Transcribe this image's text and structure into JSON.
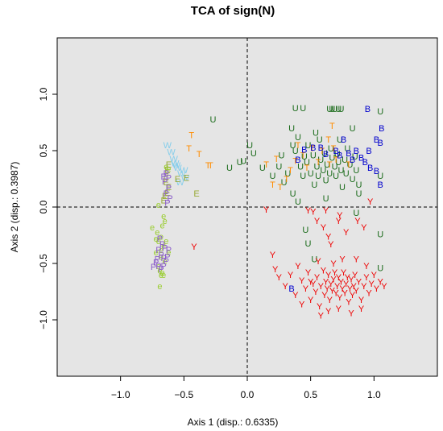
{
  "chart_data": {
    "type": "scatter",
    "title": "TCA of sign(N)",
    "xlabel": "Axis 1 (disp.: 0.6335)",
    "ylabel": "Axis 2 (disp.: 0.3987)",
    "xlim": [
      -1.5,
      1.5
    ],
    "ylim": [
      -1.5,
      1.5
    ],
    "x_ticks": [
      -1.0,
      -0.5,
      0.0,
      0.5,
      1.0
    ],
    "y_ticks": [
      -1.0,
      -0.5,
      0.0,
      0.5,
      1.0
    ],
    "x_tick_labels": [
      "−1.0",
      "−0.5",
      "0.0",
      "0.5",
      "1.0"
    ],
    "y_tick_labels": [
      "−1.0",
      "−0.5",
      "0.0",
      "0.5",
      "1.0"
    ],
    "reference_lines": {
      "x": 0,
      "y": 0,
      "style": "dashed"
    },
    "background": "#e5e5e5",
    "grid": false,
    "legend": "none",
    "series": [
      {
        "marker": "U",
        "color": "#1a6b1a",
        "points": [
          [
            -0.27,
            0.78
          ],
          [
            -0.14,
            0.35
          ],
          [
            -0.06,
            0.4
          ],
          [
            -0.03,
            0.41
          ],
          [
            0.02,
            0.55
          ],
          [
            0.05,
            0.48
          ],
          [
            0.12,
            0.35
          ],
          [
            0.2,
            0.28
          ],
          [
            0.25,
            0.36
          ],
          [
            0.27,
            0.46
          ],
          [
            0.29,
            0.22
          ],
          [
            0.32,
            0.3
          ],
          [
            0.36,
            0.55
          ],
          [
            0.38,
            0.5
          ],
          [
            0.4,
            0.62
          ],
          [
            0.42,
            0.36
          ],
          [
            0.44,
            0.28
          ],
          [
            0.45,
            0.45
          ],
          [
            0.47,
            0.4
          ],
          [
            0.48,
            0.55
          ],
          [
            0.5,
            0.3
          ],
          [
            0.52,
            0.46
          ],
          [
            0.53,
            0.2
          ],
          [
            0.55,
            0.36
          ],
          [
            0.56,
            0.28
          ],
          [
            0.57,
            0.6
          ],
          [
            0.58,
            0.42
          ],
          [
            0.6,
            0.33
          ],
          [
            0.61,
            0.48
          ],
          [
            0.62,
            0.24
          ],
          [
            0.63,
            0.38
          ],
          [
            0.65,
            0.3
          ],
          [
            0.66,
            0.52
          ],
          [
            0.67,
            0.44
          ],
          [
            0.69,
            0.36
          ],
          [
            0.7,
            0.28
          ],
          [
            0.71,
            0.47
          ],
          [
            0.72,
            0.4
          ],
          [
            0.73,
            0.6
          ],
          [
            0.74,
            0.33
          ],
          [
            0.75,
            0.18
          ],
          [
            0.77,
            0.42
          ],
          [
            0.78,
            0.3
          ],
          [
            0.79,
            0.52
          ],
          [
            0.81,
            0.38
          ],
          [
            0.83,
            0.25
          ],
          [
            0.85,
            0.45
          ],
          [
            0.86,
            0.33
          ],
          [
            0.88,
            0.2
          ],
          [
            0.38,
            0.88
          ],
          [
            0.44,
            0.88
          ],
          [
            0.65,
            0.87
          ],
          [
            0.67,
            0.87
          ],
          [
            0.69,
            0.87
          ],
          [
            0.72,
            0.87
          ],
          [
            0.74,
            0.87
          ],
          [
            0.35,
            0.7
          ],
          [
            0.54,
            0.66
          ],
          [
            0.83,
            0.7
          ],
          [
            0.88,
            0.12
          ],
          [
            0.86,
            -0.05
          ],
          [
            0.46,
            -0.2
          ],
          [
            0.48,
            -0.32
          ],
          [
            0.53,
            -0.46
          ],
          [
            1.05,
            0.85
          ],
          [
            1.05,
            0.28
          ],
          [
            1.05,
            -0.24
          ],
          [
            1.05,
            -0.54
          ],
          [
            0.62,
            0.08
          ],
          [
            0.4,
            0.05
          ],
          [
            0.36,
            0.12
          ]
        ]
      },
      {
        "marker": "T",
        "color": "#ff8c00",
        "points": [
          [
            -0.44,
            0.64
          ],
          [
            -0.46,
            0.52
          ],
          [
            -0.38,
            0.47
          ],
          [
            -0.29,
            0.37
          ],
          [
            -0.31,
            0.37
          ],
          [
            0.15,
            0.38
          ],
          [
            0.23,
            0.43
          ],
          [
            0.26,
            0.18
          ],
          [
            0.31,
            0.25
          ],
          [
            0.34,
            0.33
          ],
          [
            0.38,
            0.41
          ],
          [
            0.4,
            0.55
          ],
          [
            0.44,
            0.46
          ],
          [
            0.47,
            0.35
          ],
          [
            0.51,
            0.52
          ],
          [
            0.56,
            0.4
          ],
          [
            0.59,
            0.5
          ],
          [
            0.64,
            0.6
          ],
          [
            0.65,
            0.38
          ],
          [
            0.67,
            0.72
          ],
          [
            0.68,
            0.52
          ],
          [
            0.7,
            0.42
          ],
          [
            0.8,
            0.38
          ],
          [
            0.2,
            0.2
          ]
        ]
      },
      {
        "marker": "B",
        "color": "#0000cd",
        "points": [
          [
            0.95,
            0.87
          ],
          [
            1.06,
            0.7
          ],
          [
            1.02,
            0.6
          ],
          [
            1.05,
            0.57
          ],
          [
            0.96,
            0.5
          ],
          [
            0.9,
            0.44
          ],
          [
            0.93,
            0.4
          ],
          [
            0.97,
            0.35
          ],
          [
            1.02,
            0.32
          ],
          [
            1.05,
            0.2
          ],
          [
            0.76,
            0.6
          ],
          [
            0.8,
            0.48
          ],
          [
            0.86,
            0.5
          ],
          [
            0.83,
            0.42
          ],
          [
            0.73,
            0.46
          ],
          [
            0.7,
            0.5
          ],
          [
            0.62,
            0.47
          ],
          [
            0.58,
            0.53
          ],
          [
            0.52,
            0.53
          ],
          [
            0.45,
            0.51
          ],
          [
            0.4,
            0.42
          ],
          [
            0.35,
            -0.72
          ]
        ]
      },
      {
        "marker": "Y",
        "color": "#ee0000",
        "points": [
          [
            -0.42,
            -0.35
          ],
          [
            0.15,
            -0.02
          ],
          [
            0.48,
            -0.03
          ],
          [
            0.52,
            -0.04
          ],
          [
            0.62,
            -0.03
          ],
          [
            0.73,
            -0.07
          ],
          [
            0.97,
            0.05
          ],
          [
            0.55,
            -0.12
          ],
          [
            0.6,
            -0.18
          ],
          [
            0.64,
            -0.26
          ],
          [
            0.66,
            -0.33
          ],
          [
            0.72,
            -0.12
          ],
          [
            0.78,
            -0.22
          ],
          [
            0.87,
            -0.12
          ],
          [
            0.92,
            -0.18
          ],
          [
            0.2,
            -0.42
          ],
          [
            0.22,
            -0.55
          ],
          [
            0.25,
            -0.62
          ],
          [
            0.3,
            -0.7
          ],
          [
            0.34,
            -0.6
          ],
          [
            0.38,
            -0.78
          ],
          [
            0.4,
            -0.52
          ],
          [
            0.43,
            -0.65
          ],
          [
            0.46,
            -0.72
          ],
          [
            0.48,
            -0.58
          ],
          [
            0.5,
            -0.82
          ],
          [
            0.52,
            -0.68
          ],
          [
            0.54,
            -0.75
          ],
          [
            0.55,
            -0.62
          ],
          [
            0.57,
            -0.88
          ],
          [
            0.58,
            -0.7
          ],
          [
            0.6,
            -0.56
          ],
          [
            0.61,
            -0.78
          ],
          [
            0.62,
            -0.66
          ],
          [
            0.63,
            -0.72
          ],
          [
            0.64,
            -0.6
          ],
          [
            0.65,
            -0.82
          ],
          [
            0.66,
            -0.68
          ],
          [
            0.67,
            -0.74
          ],
          [
            0.68,
            -0.64
          ],
          [
            0.69,
            -0.58
          ],
          [
            0.7,
            -0.76
          ],
          [
            0.71,
            -0.7
          ],
          [
            0.72,
            -0.62
          ],
          [
            0.73,
            -0.8
          ],
          [
            0.74,
            -0.66
          ],
          [
            0.75,
            -0.72
          ],
          [
            0.76,
            -0.58
          ],
          [
            0.77,
            -0.76
          ],
          [
            0.78,
            -0.68
          ],
          [
            0.79,
            -0.62
          ],
          [
            0.8,
            -0.84
          ],
          [
            0.81,
            -0.72
          ],
          [
            0.82,
            -0.64
          ],
          [
            0.83,
            -0.78
          ],
          [
            0.84,
            -0.7
          ],
          [
            0.85,
            -0.6
          ],
          [
            0.86,
            -0.74
          ],
          [
            0.88,
            -0.66
          ],
          [
            0.9,
            -0.82
          ],
          [
            0.92,
            -0.7
          ],
          [
            0.94,
            -0.62
          ],
          [
            0.96,
            -0.76
          ],
          [
            0.98,
            -0.68
          ],
          [
            1.0,
            -0.6
          ],
          [
            1.02,
            -0.72
          ],
          [
            1.05,
            -0.66
          ],
          [
            1.08,
            -0.7
          ],
          [
            0.64,
            -0.92
          ],
          [
            0.72,
            -0.9
          ],
          [
            0.58,
            -0.96
          ],
          [
            0.82,
            -0.94
          ],
          [
            0.5,
            -0.66
          ],
          [
            0.56,
            -0.48
          ],
          [
            0.68,
            -0.5
          ],
          [
            0.75,
            -0.46
          ],
          [
            0.86,
            -0.46
          ],
          [
            0.94,
            -0.52
          ],
          [
            0.43,
            -0.86
          ],
          [
            0.9,
            -0.9
          ]
        ]
      },
      {
        "marker": "W",
        "color": "#87ceeb",
        "points": [
          [
            -0.63,
            0.55
          ],
          [
            -0.6,
            0.49
          ],
          [
            -0.58,
            0.43
          ],
          [
            -0.57,
            0.39
          ],
          [
            -0.56,
            0.37
          ],
          [
            -0.55,
            0.35
          ],
          [
            -0.52,
            0.3
          ],
          [
            -0.5,
            0.33
          ],
          [
            -0.49,
            0.26
          ],
          [
            -0.53,
            0.22
          ]
        ]
      },
      {
        "marker": "E",
        "color": "#9aab3a",
        "points": [
          [
            -0.62,
            0.38
          ],
          [
            -0.63,
            0.33
          ],
          [
            -0.64,
            0.27
          ],
          [
            -0.64,
            0.22
          ],
          [
            -0.62,
            0.18
          ],
          [
            -0.63,
            0.13
          ],
          [
            -0.65,
            0.1
          ],
          [
            -0.66,
            0.06
          ],
          [
            -0.55,
            0.25
          ],
          [
            -0.48,
            0.26
          ],
          [
            -0.4,
            0.12
          ]
        ]
      },
      {
        "marker": "e",
        "color": "#9acd32",
        "points": [
          [
            -0.75,
            -0.18
          ],
          [
            -0.71,
            -0.22
          ],
          [
            -0.67,
            -0.16
          ],
          [
            -0.65,
            -0.12
          ],
          [
            -0.66,
            -0.08
          ],
          [
            -0.68,
            -0.26
          ],
          [
            -0.7,
            -0.3
          ],
          [
            -0.66,
            -0.34
          ],
          [
            -0.64,
            -0.3
          ],
          [
            -0.72,
            -0.4
          ],
          [
            -0.68,
            -0.44
          ],
          [
            -0.65,
            -0.48
          ],
          [
            -0.7,
            -0.52
          ],
          [
            -0.66,
            -0.6
          ],
          [
            -0.69,
            -0.56
          ],
          [
            -0.68,
            -0.6
          ],
          [
            -0.67,
            -0.58
          ],
          [
            -0.68,
            -0.38
          ],
          [
            -0.72,
            -0.28
          ],
          [
            -0.62,
            -0.4
          ],
          [
            -0.62,
            0.34
          ],
          [
            -0.64,
            0.36
          ],
          [
            -0.7,
            0.02
          ],
          [
            -0.69,
            -0.7
          ]
        ]
      },
      {
        "marker": "P",
        "color": "#8a5cc9",
        "points": [
          [
            -0.66,
            0.27
          ],
          [
            -0.64,
            0.3
          ],
          [
            -0.62,
            0.26
          ],
          [
            -0.65,
            0.23
          ],
          [
            -0.62,
            0.17
          ],
          [
            -0.64,
            0.12
          ],
          [
            -0.63,
            0.04
          ],
          [
            -0.61,
            0.08
          ],
          [
            -0.69,
            -0.28
          ],
          [
            -0.67,
            -0.33
          ],
          [
            -0.65,
            -0.36
          ],
          [
            -0.7,
            -0.38
          ],
          [
            -0.68,
            -0.42
          ],
          [
            -0.66,
            -0.45
          ],
          [
            -0.64,
            -0.48
          ],
          [
            -0.72,
            -0.49
          ],
          [
            -0.7,
            -0.52
          ],
          [
            -0.68,
            -0.55
          ],
          [
            -0.66,
            -0.52
          ],
          [
            -0.63,
            -0.44
          ],
          [
            -0.62,
            -0.38
          ],
          [
            -0.74,
            -0.53
          ],
          [
            -0.71,
            -0.46
          ]
        ]
      }
    ]
  }
}
